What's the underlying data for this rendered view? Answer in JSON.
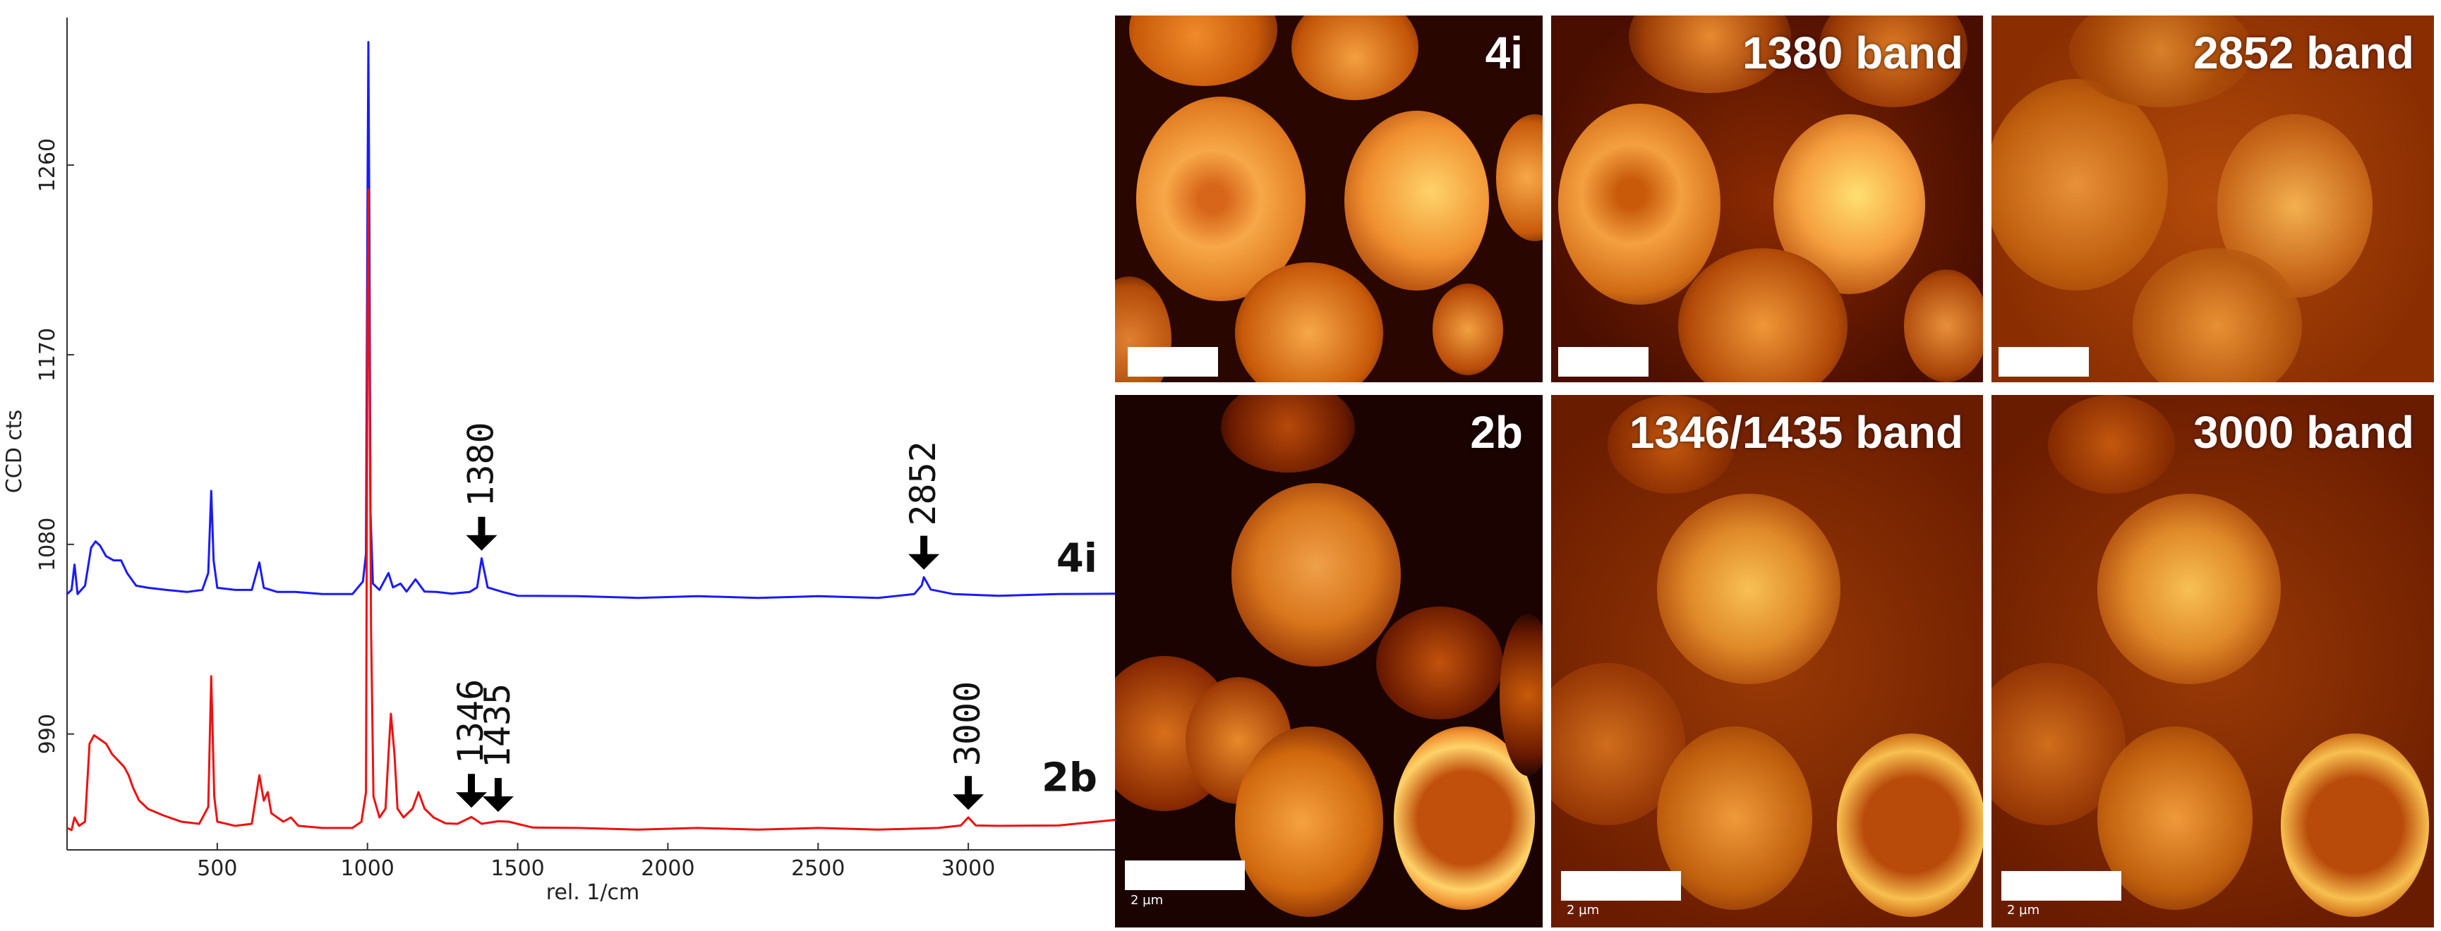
{
  "chart_data": {
    "type": "line",
    "ylabel": "CCD cts",
    "xlabel": "rel. 1/cm",
    "xlim": [
      0,
      3500
    ],
    "ylim": [
      935,
      1330
    ],
    "xticks": [
      500,
      1000,
      1500,
      2000,
      2500,
      3000
    ],
    "yticks": [
      990,
      1080,
      1170,
      1260
    ],
    "grid": false,
    "series": [
      {
        "name": "4i",
        "color": "#1a1aff",
        "baseline": 1055,
        "points": [
          [
            0,
            1056
          ],
          [
            15,
            1058
          ],
          [
            25,
            1070
          ],
          [
            35,
            1056
          ],
          [
            60,
            1060
          ],
          [
            80,
            1078
          ],
          [
            95,
            1081
          ],
          [
            110,
            1079
          ],
          [
            130,
            1074
          ],
          [
            155,
            1072
          ],
          [
            180,
            1072
          ],
          [
            200,
            1066
          ],
          [
            230,
            1060
          ],
          [
            270,
            1059
          ],
          [
            330,
            1058
          ],
          [
            400,
            1057
          ],
          [
            450,
            1058
          ],
          [
            470,
            1066
          ],
          [
            480,
            1105
          ],
          [
            488,
            1072
          ],
          [
            500,
            1059
          ],
          [
            560,
            1058
          ],
          [
            615,
            1058
          ],
          [
            640,
            1071
          ],
          [
            655,
            1059
          ],
          [
            700,
            1057
          ],
          [
            760,
            1057
          ],
          [
            850,
            1056
          ],
          [
            950,
            1056
          ],
          [
            985,
            1062
          ],
          [
            995,
            1075
          ],
          [
            1000,
            1240
          ],
          [
            1003,
            1318
          ],
          [
            1006,
            1240
          ],
          [
            1010,
            1095
          ],
          [
            1018,
            1061
          ],
          [
            1040,
            1058
          ],
          [
            1070,
            1066
          ],
          [
            1085,
            1060
          ],
          [
            1110,
            1061
          ],
          [
            1130,
            1058
          ],
          [
            1160,
            1063
          ],
          [
            1190,
            1058
          ],
          [
            1230,
            1057
          ],
          [
            1280,
            1057
          ],
          [
            1340,
            1057
          ],
          [
            1365,
            1060
          ],
          [
            1380,
            1073
          ],
          [
            1400,
            1060
          ],
          [
            1450,
            1057
          ],
          [
            1500,
            1056
          ],
          [
            1700,
            1055
          ],
          [
            1900,
            1055
          ],
          [
            2100,
            1055
          ],
          [
            2300,
            1055
          ],
          [
            2500,
            1055
          ],
          [
            2700,
            1055
          ],
          [
            2820,
            1056
          ],
          [
            2845,
            1061
          ],
          [
            2852,
            1064
          ],
          [
            2875,
            1059
          ],
          [
            2950,
            1056
          ],
          [
            3100,
            1056
          ],
          [
            3300,
            1056
          ],
          [
            3500,
            1057
          ]
        ]
      },
      {
        "name": "2b",
        "color": "#ee1111",
        "baseline": 945,
        "points": [
          [
            0,
            945
          ],
          [
            15,
            944
          ],
          [
            25,
            950
          ],
          [
            40,
            946
          ],
          [
            60,
            948
          ],
          [
            75,
            985
          ],
          [
            90,
            989
          ],
          [
            110,
            987
          ],
          [
            130,
            985
          ],
          [
            150,
            980
          ],
          [
            170,
            977
          ],
          [
            190,
            974
          ],
          [
            205,
            970
          ],
          [
            220,
            964
          ],
          [
            240,
            958
          ],
          [
            270,
            954
          ],
          [
            320,
            951
          ],
          [
            380,
            948
          ],
          [
            440,
            947
          ],
          [
            470,
            955
          ],
          [
            480,
            1017
          ],
          [
            490,
            960
          ],
          [
            500,
            948
          ],
          [
            560,
            946
          ],
          [
            615,
            947
          ],
          [
            640,
            970
          ],
          [
            655,
            958
          ],
          [
            668,
            962
          ],
          [
            680,
            952
          ],
          [
            720,
            948
          ],
          [
            745,
            950
          ],
          [
            770,
            946
          ],
          [
            850,
            945
          ],
          [
            950,
            945
          ],
          [
            980,
            948
          ],
          [
            995,
            962
          ],
          [
            1000,
            1180
          ],
          [
            1003,
            1248
          ],
          [
            1006,
            1180
          ],
          [
            1012,
            1040
          ],
          [
            1020,
            960
          ],
          [
            1040,
            950
          ],
          [
            1060,
            955
          ],
          [
            1070,
            980
          ],
          [
            1078,
            1000
          ],
          [
            1090,
            980
          ],
          [
            1100,
            955
          ],
          [
            1120,
            950
          ],
          [
            1150,
            955
          ],
          [
            1170,
            962
          ],
          [
            1190,
            955
          ],
          [
            1220,
            950
          ],
          [
            1260,
            948
          ],
          [
            1300,
            947
          ],
          [
            1346,
            951
          ],
          [
            1380,
            947
          ],
          [
            1435,
            949
          ],
          [
            1470,
            948
          ],
          [
            1550,
            946
          ],
          [
            1700,
            945
          ],
          [
            1900,
            945
          ],
          [
            2100,
            945
          ],
          [
            2300,
            945
          ],
          [
            2500,
            945
          ],
          [
            2700,
            945
          ],
          [
            2900,
            945
          ],
          [
            2975,
            947
          ],
          [
            3000,
            950
          ],
          [
            3025,
            947
          ],
          [
            3100,
            946
          ],
          [
            3300,
            947
          ],
          [
            3500,
            949
          ]
        ]
      }
    ],
    "annotations": [
      {
        "label": "1380",
        "x": 1380,
        "y": 1073,
        "series": "4i"
      },
      {
        "label": "2852",
        "x": 2852,
        "y": 1064,
        "series": "4i"
      },
      {
        "label": "1346",
        "x": 1346,
        "y": 951,
        "series": "2b"
      },
      {
        "label": "1435",
        "x": 1435,
        "y": 949,
        "series": "2b"
      },
      {
        "label": "3000",
        "x": 3000,
        "y": 950,
        "series": "2b"
      }
    ]
  },
  "images": {
    "top": [
      {
        "title": "4i",
        "scale_text": ""
      },
      {
        "title": "1380 band",
        "scale_text": ""
      },
      {
        "title": "2852 band",
        "scale_text": ""
      }
    ],
    "bottom": [
      {
        "title": "2b",
        "scale_text": "2 µm"
      },
      {
        "title": "1346/1435 band",
        "scale_text": "2 µm"
      },
      {
        "title": "3000 band",
        "scale_text": "2 µm"
      }
    ]
  },
  "colors": {
    "spectrum_4i": "#1a1aff",
    "spectrum_2b": "#ee1111",
    "raman_dark": "#5a1400",
    "raman_mid": "#c85a0a",
    "raman_bright": "#ffd36a"
  }
}
